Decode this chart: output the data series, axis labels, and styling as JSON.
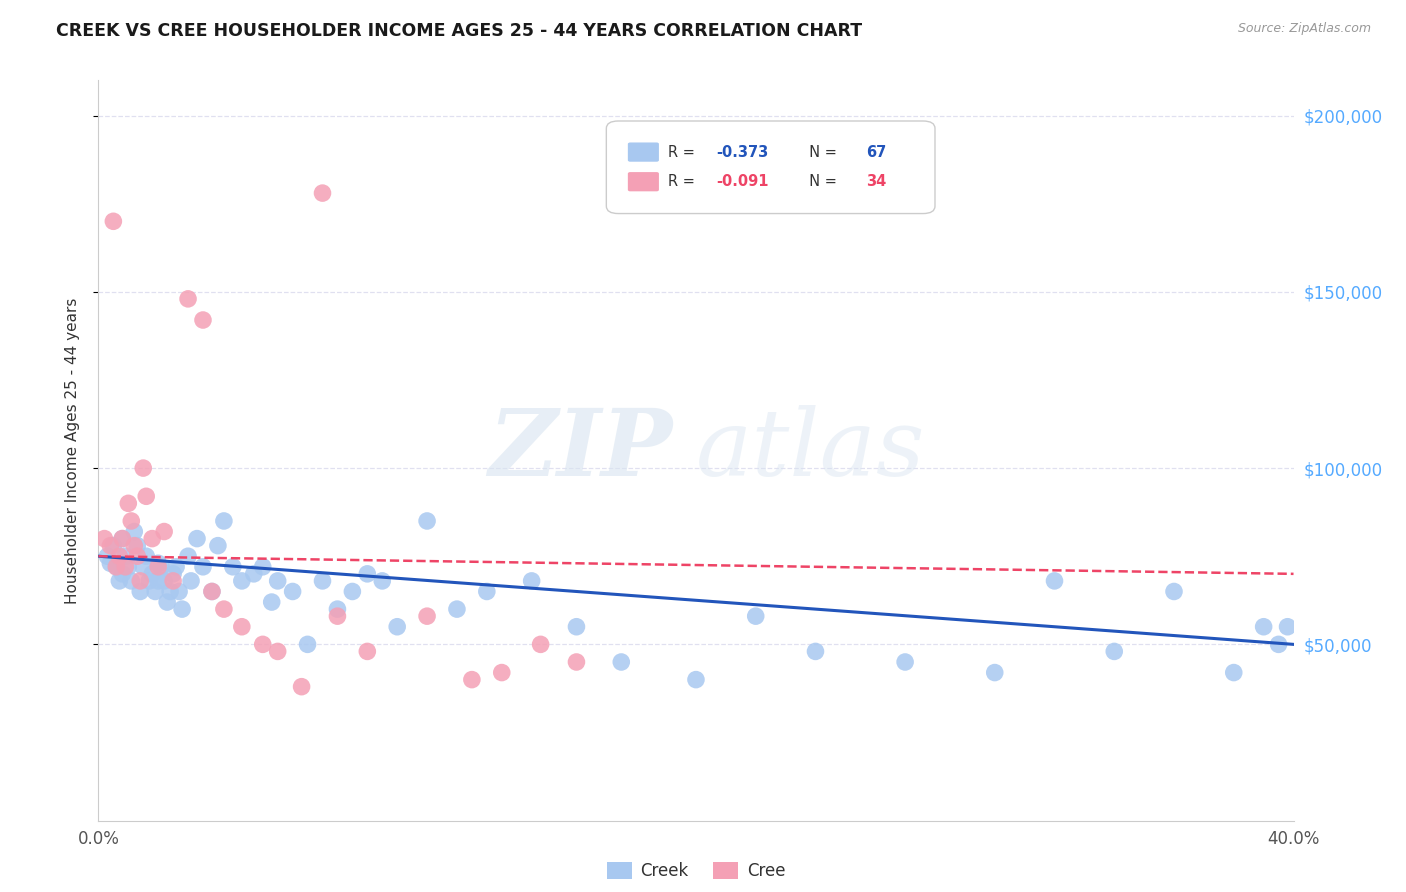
{
  "title": "CREEK VS CREE HOUSEHOLDER INCOME AGES 25 - 44 YEARS CORRELATION CHART",
  "source": "Source: ZipAtlas.com",
  "ylabel": "Householder Income Ages 25 - 44 years",
  "creek_label": "Creek",
  "cree_label": "Cree",
  "creek_R": "-0.373",
  "creek_N": "67",
  "cree_R": "-0.091",
  "cree_N": "34",
  "xmin": 0.0,
  "xmax": 0.4,
  "ymin": 0,
  "ymax": 210000,
  "yticks": [
    50000,
    100000,
    150000,
    200000
  ],
  "ytick_labels": [
    "$50,000",
    "$100,000",
    "$150,000",
    "$200,000"
  ],
  "xticks": [
    0.0,
    0.08,
    0.16,
    0.24,
    0.32,
    0.4
  ],
  "xtick_labels": [
    "0.0%",
    "",
    "",
    "",
    "",
    "40.0%"
  ],
  "creek_color": "#a8c8f0",
  "cree_color": "#f4a0b5",
  "creek_line_color": "#2255bb",
  "cree_line_color": "#ee4466",
  "watermark_zip": "ZIP",
  "watermark_atlas": "atlas",
  "background_color": "#ffffff",
  "grid_color": "#e0e0f0",
  "creek_x": [
    0.003,
    0.004,
    0.005,
    0.006,
    0.007,
    0.008,
    0.008,
    0.009,
    0.01,
    0.011,
    0.012,
    0.013,
    0.014,
    0.015,
    0.016,
    0.017,
    0.018,
    0.019,
    0.02,
    0.02,
    0.021,
    0.022,
    0.023,
    0.024,
    0.025,
    0.026,
    0.027,
    0.028,
    0.03,
    0.031,
    0.033,
    0.035,
    0.038,
    0.04,
    0.042,
    0.045,
    0.048,
    0.052,
    0.055,
    0.058,
    0.06,
    0.065,
    0.07,
    0.075,
    0.08,
    0.085,
    0.09,
    0.095,
    0.1,
    0.11,
    0.12,
    0.13,
    0.145,
    0.16,
    0.175,
    0.2,
    0.22,
    0.24,
    0.27,
    0.3,
    0.32,
    0.34,
    0.36,
    0.38,
    0.39,
    0.395,
    0.398
  ],
  "creek_y": [
    75000,
    73000,
    78000,
    72000,
    68000,
    80000,
    70000,
    75000,
    72000,
    68000,
    82000,
    78000,
    65000,
    72000,
    75000,
    68000,
    70000,
    65000,
    73000,
    68000,
    72000,
    68000,
    62000,
    65000,
    70000,
    72000,
    65000,
    60000,
    75000,
    68000,
    80000,
    72000,
    65000,
    78000,
    85000,
    72000,
    68000,
    70000,
    72000,
    62000,
    68000,
    65000,
    50000,
    68000,
    60000,
    65000,
    70000,
    68000,
    55000,
    85000,
    60000,
    65000,
    68000,
    55000,
    45000,
    40000,
    58000,
    48000,
    45000,
    42000,
    68000,
    48000,
    65000,
    42000,
    55000,
    50000,
    55000
  ],
  "cree_x": [
    0.002,
    0.004,
    0.005,
    0.006,
    0.007,
    0.008,
    0.009,
    0.01,
    0.011,
    0.012,
    0.013,
    0.014,
    0.015,
    0.016,
    0.018,
    0.02,
    0.022,
    0.025,
    0.03,
    0.035,
    0.038,
    0.042,
    0.048,
    0.055,
    0.06,
    0.068,
    0.075,
    0.08,
    0.09,
    0.11,
    0.125,
    0.135,
    0.148,
    0.16
  ],
  "cree_y": [
    80000,
    78000,
    170000,
    72000,
    75000,
    80000,
    72000,
    90000,
    85000,
    78000,
    75000,
    68000,
    100000,
    92000,
    80000,
    72000,
    82000,
    68000,
    148000,
    142000,
    65000,
    60000,
    55000,
    50000,
    48000,
    38000,
    178000,
    58000,
    48000,
    58000,
    40000,
    42000,
    50000,
    45000
  ]
}
